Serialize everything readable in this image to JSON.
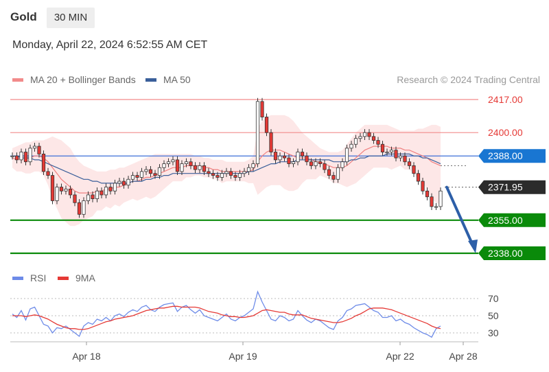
{
  "header": {
    "symbol": "Gold",
    "timeframe": "30 MIN"
  },
  "datetime": "Monday, April 22, 2024 6:52:55 AM CET",
  "legend": {
    "items": [
      {
        "label": "MA 20 + Bollinger Bands",
        "color": "#f28b8b"
      },
      {
        "label": "MA 50",
        "color": "#3a5f9a"
      }
    ],
    "credit": "Research © 2024 Trading Central"
  },
  "rsi_legend": {
    "items": [
      {
        "label": "RSI",
        "color": "#6d8be8"
      },
      {
        "label": "9MA",
        "color": "#e53935"
      }
    ]
  },
  "colors": {
    "resistance": "#f28b8b",
    "resistance_text": "#e53935",
    "pivot": "#3b6fd8",
    "pivot_tag": "#1976d2",
    "support": "#0a8a0a",
    "last_tag": "#2b2b2b",
    "arrow": "#2d5fa8",
    "candle_up": "#ffffff",
    "candle_down": "#e53935",
    "band": "#fde3e3"
  },
  "chart_data": [
    {
      "type": "candlestick",
      "ylim": [
        2330,
        2425
      ],
      "x_ticks": [
        "Apr 18",
        "Apr 19",
        "Apr 22",
        "Apr 28"
      ],
      "levels": [
        {
          "label": "2417.00",
          "value": 2417,
          "kind": "resistance"
        },
        {
          "label": "2400.00",
          "value": 2400,
          "kind": "resistance"
        },
        {
          "label": "2388.00",
          "value": 2388,
          "kind": "pivot"
        },
        {
          "label": "2371.95",
          "value": 2371.95,
          "kind": "last"
        },
        {
          "label": "2355.00",
          "value": 2355,
          "kind": "support"
        },
        {
          "label": "2338.00",
          "value": 2338,
          "kind": "support"
        }
      ],
      "projection": {
        "from": 2371.95,
        "to": 2338
      },
      "price": [
        2388,
        2386,
        2390,
        2385,
        2392,
        2393,
        2389,
        2380,
        2378,
        2365,
        2372,
        2370,
        2371,
        2368,
        2364,
        2358,
        2365,
        2368,
        2366,
        2370,
        2368,
        2372,
        2370,
        2374,
        2375,
        2373,
        2376,
        2378,
        2377,
        2380,
        2381,
        2379,
        2378,
        2382,
        2384,
        2385,
        2386,
        2380,
        2384,
        2385,
        2383,
        2381,
        2383,
        2380,
        2379,
        2378,
        2377,
        2379,
        2380,
        2378,
        2377,
        2379,
        2380,
        2382,
        2384,
        2416,
        2408,
        2400,
        2390,
        2386,
        2388,
        2387,
        2384,
        2385,
        2390,
        2388,
        2385,
        2383,
        2385,
        2384,
        2381,
        2378,
        2376,
        2382,
        2385,
        2392,
        2394,
        2397,
        2398,
        2400,
        2398,
        2396,
        2394,
        2390,
        2390,
        2391,
        2387,
        2388,
        2385,
        2383,
        2379,
        2375,
        2370,
        2367,
        2362,
        2362,
        2370
      ],
      "ma20": [
        2387,
        2386,
        2387,
        2387,
        2387,
        2388,
        2388,
        2387,
        2385,
        2382,
        2379,
        2376,
        2374,
        2372,
        2370,
        2369,
        2369,
        2369,
        2369,
        2370,
        2370,
        2371,
        2371,
        2372,
        2372,
        2373,
        2374,
        2375,
        2375,
        2376,
        2377,
        2377,
        2378,
        2379,
        2380,
        2381,
        2382,
        2382,
        2382,
        2383,
        2383,
        2383,
        2383,
        2382,
        2382,
        2381,
        2381,
        2380,
        2380,
        2380,
        2380,
        2380,
        2380,
        2380,
        2381,
        2385,
        2388,
        2390,
        2391,
        2391,
        2391,
        2390,
        2389,
        2388,
        2387,
        2387,
        2387,
        2386,
        2385,
        2385,
        2384,
        2383,
        2382,
        2382,
        2382,
        2383,
        2385,
        2387,
        2389,
        2391,
        2392,
        2393,
        2393,
        2393,
        2393,
        2392,
        2392,
        2392,
        2391,
        2391,
        2390,
        2389,
        2388,
        2387,
        2385,
        2384,
        2383
      ],
      "bb_upper": [
        2392,
        2393,
        2394,
        2395,
        2395,
        2396,
        2396,
        2396,
        2397,
        2398,
        2397,
        2396,
        2394,
        2392,
        2388,
        2385,
        2383,
        2382,
        2381,
        2380,
        2380,
        2380,
        2381,
        2381,
        2382,
        2382,
        2383,
        2384,
        2385,
        2386,
        2387,
        2388,
        2389,
        2389,
        2389,
        2389,
        2389,
        2389,
        2389,
        2389,
        2389,
        2388,
        2388,
        2387,
        2387,
        2386,
        2386,
        2386,
        2385,
        2385,
        2385,
        2385,
        2385,
        2386,
        2388,
        2402,
        2406,
        2408,
        2409,
        2409,
        2409,
        2409,
        2408,
        2406,
        2403,
        2400,
        2398,
        2396,
        2394,
        2392,
        2391,
        2390,
        2390,
        2390,
        2391,
        2394,
        2397,
        2400,
        2402,
        2404,
        2404,
        2404,
        2404,
        2404,
        2404,
        2403,
        2402,
        2401,
        2401,
        2401,
        2401,
        2402,
        2402,
        2403,
        2404,
        2404,
        2403
      ],
      "bb_lower": [
        2382,
        2380,
        2380,
        2379,
        2379,
        2380,
        2380,
        2378,
        2373,
        2366,
        2361,
        2356,
        2354,
        2352,
        2352,
        2353,
        2355,
        2356,
        2357,
        2360,
        2360,
        2362,
        2361,
        2363,
        2362,
        2364,
        2365,
        2366,
        2365,
        2366,
        2367,
        2366,
        2367,
        2369,
        2371,
        2373,
        2375,
        2375,
        2375,
        2377,
        2377,
        2378,
        2378,
        2377,
        2377,
        2376,
        2376,
        2374,
        2375,
        2375,
        2375,
        2375,
        2375,
        2374,
        2374,
        2368,
        2370,
        2372,
        2373,
        2373,
        2373,
        2371,
        2370,
        2370,
        2371,
        2374,
        2376,
        2376,
        2376,
        2378,
        2377,
        2376,
        2374,
        2374,
        2373,
        2372,
        2373,
        2374,
        2376,
        2378,
        2380,
        2382,
        2382,
        2382,
        2382,
        2381,
        2382,
        2383,
        2381,
        2381,
        2379,
        2376,
        2374,
        2371,
        2366,
        2364,
        2363
      ],
      "ma50": [
        2388,
        2388,
        2387,
        2387,
        2387,
        2386,
        2386,
        2385,
        2384,
        2383,
        2382,
        2381,
        2380,
        2379,
        2378,
        2377,
        2376,
        2376,
        2375,
        2375,
        2374,
        2374,
        2374,
        2374,
        2374,
        2374,
        2374,
        2375,
        2375,
        2375,
        2376,
        2376,
        2377,
        2377,
        2378,
        2378,
        2379,
        2379,
        2379,
        2379,
        2379,
        2379,
        2379,
        2379,
        2379,
        2379,
        2379,
        2379,
        2379,
        2379,
        2379,
        2379,
        2379,
        2380,
        2380,
        2381,
        2382,
        2383,
        2384,
        2384,
        2385,
        2385,
        2385,
        2385,
        2386,
        2386,
        2386,
        2386,
        2386,
        2386,
        2386,
        2386,
        2385,
        2385,
        2385,
        2385,
        2386,
        2386,
        2387,
        2387,
        2388,
        2388,
        2388,
        2388,
        2389,
        2389,
        2389,
        2389,
        2389,
        2389,
        2388,
        2388,
        2387,
        2387,
        2386,
        2385,
        2384
      ]
    },
    {
      "type": "line",
      "name": "RSI",
      "ylim": [
        20,
        80
      ],
      "y_ticks": [
        70,
        50,
        30
      ],
      "rsi": [
        52,
        48,
        56,
        45,
        58,
        60,
        50,
        40,
        38,
        30,
        36,
        35,
        38,
        34,
        30,
        26,
        38,
        42,
        40,
        46,
        44,
        48,
        44,
        50,
        52,
        49,
        54,
        57,
        55,
        60,
        62,
        57,
        55,
        60,
        63,
        64,
        65,
        55,
        60,
        62,
        57,
        53,
        57,
        50,
        48,
        46,
        44,
        48,
        52,
        46,
        44,
        48,
        50,
        54,
        58,
        78,
        66,
        56,
        46,
        44,
        50,
        48,
        44,
        46,
        56,
        50,
        45,
        42,
        46,
        44,
        40,
        36,
        34,
        44,
        48,
        56,
        58,
        62,
        63,
        64,
        60,
        56,
        54,
        48,
        48,
        50,
        44,
        46,
        42,
        40,
        36,
        33,
        30,
        28,
        25,
        35,
        38
      ],
      "rsi_ma": [
        50,
        50,
        50,
        49,
        50,
        51,
        50,
        48,
        46,
        43,
        40,
        38,
        36,
        35,
        35,
        34,
        34,
        35,
        37,
        39,
        41,
        43,
        44,
        46,
        47,
        48,
        49,
        50,
        52,
        54,
        56,
        57,
        58,
        59,
        59,
        60,
        61,
        61,
        60,
        60,
        60,
        60,
        59,
        57,
        55,
        54,
        53,
        51,
        50,
        49,
        49,
        48,
        48,
        49,
        50,
        53,
        56,
        57,
        56,
        55,
        54,
        54,
        52,
        51,
        51,
        51,
        49,
        47,
        46,
        45,
        44,
        43,
        42,
        42,
        43,
        45,
        47,
        50,
        52,
        55,
        58,
        59,
        59,
        59,
        58,
        57,
        55,
        53,
        51,
        49,
        47,
        45,
        43,
        41,
        38,
        36,
        35
      ]
    }
  ]
}
